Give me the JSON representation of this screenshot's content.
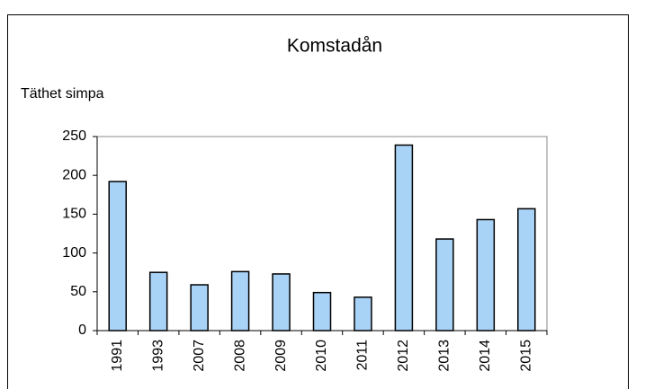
{
  "chart_data": {
    "type": "bar",
    "title": "Komstadån",
    "y_label": "Täthet simpa",
    "categories": [
      "1991",
      "1993",
      "2007",
      "2008",
      "2009",
      "2010",
      "2011",
      "2012",
      "2013",
      "2014",
      "2015"
    ],
    "values": [
      192,
      75,
      59,
      76,
      73,
      49,
      43,
      239,
      118,
      143,
      157
    ],
    "color": "#a9d2f7",
    "ylim": [
      0,
      250
    ],
    "yticks": [
      0,
      50,
      100,
      150,
      200,
      250
    ],
    "grid": false
  }
}
